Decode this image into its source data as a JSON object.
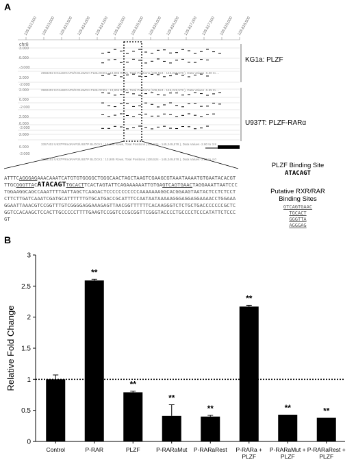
{
  "panel_a": {
    "letter": "A",
    "ruler_ticks": [
      "128,812,500",
      "128,813,000",
      "128,813,500",
      "128,814,000",
      "128,814,500",
      "128,815,000",
      "128,815,500",
      "128,816,000",
      "128,816,500",
      "128,817,000",
      "128,817,500",
      "128,818,000",
      "128,818,500"
    ],
    "chrom": "chr8",
    "tracks": [
      {
        "label": "KG1a: PLZF",
        "info": "2958292 KG1aWGAP3/KG1aWGA PLBLOCK1 : 13,905 Rows, Total Positions (106,524 - 145,249,578 ), Data Values -5.00 to ..."
      },
      {
        "label": "",
        "info": "2960402 KG1aWGAP3/KG1aWGA PLBLOCK1 : 13,905 Rows, Total Positions (106,524 - 145,249,578 ), Data Values -5.65 to ..."
      },
      {
        "label": "U937T: PLZF-RARα",
        "info": "3357402 U937PRmoRAP3/U937P BLOCK1 : 13,905 Rows, Total Positions (106,524 - 145,249,578 ), Data Values -2.80 to 3.8"
      },
      {
        "label": "",
        "info": "3358102 U937PRmoRAP3/U937P BLOCK1 : 13,905 Rows, Total Positions (106,524 - 145,249,578 ), Data Values -2.09 to 4.0"
      }
    ],
    "scale_values": [
      "3.000",
      "0.000",
      "-3.000",
      "3.000",
      "-2.000",
      "2.000",
      "0.000",
      "-2.000",
      "2.000",
      "0.000",
      "-2.000",
      "2.000",
      "0.000",
      "-2.000"
    ],
    "sequence": {
      "prefix": "ATTTC",
      "site1": "AGGGAG",
      "mid1": "AAACAAATCATGTGTGGGGCTGGGCAACTAGCTAAGTCGAAGCGTAAATAAAATGTGAATACACGTTTGC",
      "site2": "GGGTTA",
      "mid2": "C",
      "plzf": "ATACAGT",
      "site3": "TGCACT",
      "mid3": "TCACTAGTATTCAGAAAAAATTGTGA",
      "site4": "GTCAGTGAAC",
      "suffix": "TAGGAAATTAATCCCTGGAAGGCAGCCAAATTTTAATTAGCTCAAGACTCCCCCCCCCCCAAAAAAAGGCACGGAAGTAATACTCCTCTCCTCTTCTTGATCAAATCGATGCATTTTTTGTGCATGACCGCATTTCCAATAATAAAAAGGGAGGAGGAAAACCTGGAAAGGAATTAAACGTCCGGTTTGTCGGGGAGGAAAGAGTTAACGGTTTTTTCACAAGGGTCTCTGCTGACCCCCCCGCTCGGTCCACAAGCTCCACTTGCCCCCTTTTGAAGTCCGGTCCCGCGGTTCGGGTACCCCTGCCCCTCCCATATTCTCCCGT"
    },
    "binding": {
      "plzf_title": "PLZF Binding Site",
      "plzf_seq": "ATACAGT",
      "rxr_title_1": "Putative RXR/RAR",
      "rxr_title_2": "Binding Sites",
      "rxr_sites": [
        "GTCAGTGAAC",
        "TGCACT",
        "GGGTTA",
        "AGGGAG"
      ]
    }
  },
  "panel_b": {
    "letter": "B",
    "colors": {
      "bar": "#000000",
      "reference_line": "#000000"
    },
    "significance_mark": "**"
  },
  "chart_data": {
    "type": "bar",
    "ylabel": "Relative Fold Change",
    "ylim": [
      0,
      3
    ],
    "yticks": [
      "0",
      "0.5",
      "1",
      "1.5",
      "2",
      "2.5",
      "3"
    ],
    "categories": [
      [
        "Control"
      ],
      [
        "P-RAR"
      ],
      [
        "PLZF"
      ],
      [
        "P-RARaMut"
      ],
      [
        "P-RARaRest"
      ],
      [
        "P-RARa +",
        "PLZF"
      ],
      [
        "P-RARaMut +",
        "PLZF"
      ],
      [
        "P-RARaRest +",
        "PLZF"
      ]
    ],
    "values": [
      1.0,
      2.59,
      0.79,
      0.41,
      0.4,
      2.17,
      0.43,
      0.38
    ],
    "errors": [
      0.07,
      0.02,
      0.02,
      0.18,
      0.02,
      0.02,
      0.0,
      0.0
    ],
    "significant": [
      false,
      true,
      true,
      true,
      true,
      true,
      true,
      true
    ],
    "reference_line": 1
  }
}
